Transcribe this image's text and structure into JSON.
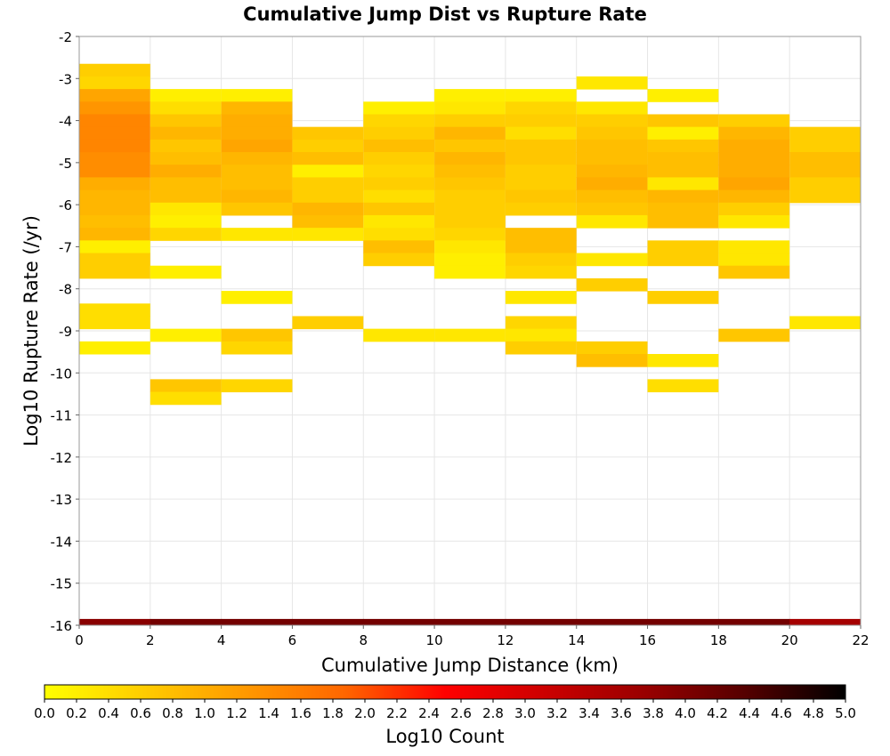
{
  "chart_data": {
    "type": "heatmap",
    "title": "Cumulative Jump Dist vs Rupture Rate",
    "xlabel": "Cumulative Jump Distance (km)",
    "ylabel": "Log10 Rupture Rate (/yr)",
    "xlim": [
      0,
      22
    ],
    "ylim": [
      -16,
      -2
    ],
    "x_ticks": [
      "0",
      "2",
      "4",
      "6",
      "8",
      "10",
      "12",
      "14",
      "16",
      "18",
      "20",
      "22"
    ],
    "y_ticks": [
      "-2",
      "-3",
      "-4",
      "-5",
      "-6",
      "-7",
      "-8",
      "-9",
      "-10",
      "-11",
      "-12",
      "-13",
      "-14",
      "-15",
      "-16"
    ],
    "x_bin_width": 2,
    "y_bin_height": 0.3,
    "grid": true,
    "colorbar": {
      "label": "Log10 Count",
      "min": 0.0,
      "max": 5.0,
      "ticks": [
        "0.0",
        "0.2",
        "0.4",
        "0.6",
        "0.8",
        "1.0",
        "1.2",
        "1.4",
        "1.6",
        "1.8",
        "2.0",
        "2.2",
        "2.4",
        "2.6",
        "2.8",
        "3.0",
        "3.2",
        "3.4",
        "3.6",
        "3.8",
        "4.0",
        "4.2",
        "4.4",
        "4.6",
        "4.8",
        "5.0"
      ],
      "stops": [
        "#ffff00",
        "#ffcc00",
        "#ff9900",
        "#ff6600",
        "#ff0000",
        "#cc0000",
        "#990000",
        "#550000",
        "#000000"
      ]
    },
    "cells": [
      {
        "x": 1,
        "values": [
          [
            -2.8,
            0.6
          ],
          [
            -3.1,
            0.5
          ],
          [
            -3.4,
            1.1
          ],
          [
            -3.7,
            1.3
          ],
          [
            -4.0,
            1.5
          ],
          [
            -4.3,
            1.5
          ],
          [
            -4.6,
            1.5
          ],
          [
            -4.9,
            1.4
          ],
          [
            -5.2,
            1.4
          ],
          [
            -5.5,
            1.0
          ],
          [
            -5.8,
            0.9
          ],
          [
            -6.1,
            0.9
          ],
          [
            -6.4,
            0.8
          ],
          [
            -6.7,
            0.9
          ],
          [
            -7.0,
            0.2
          ],
          [
            -7.3,
            0.6
          ],
          [
            -7.6,
            0.6
          ],
          [
            -8.5,
            0.4
          ],
          [
            -8.8,
            0.4
          ],
          [
            -9.4,
            0.2
          ]
        ]
      },
      {
        "x": 3,
        "values": [
          [
            -3.4,
            0.2
          ],
          [
            -3.7,
            0.4
          ],
          [
            -4.0,
            0.7
          ],
          [
            -4.3,
            0.9
          ],
          [
            -4.6,
            0.7
          ],
          [
            -4.9,
            0.8
          ],
          [
            -5.2,
            1.0
          ],
          [
            -5.5,
            0.8
          ],
          [
            -5.8,
            0.8
          ],
          [
            -6.1,
            0.3
          ],
          [
            -6.4,
            0.2
          ],
          [
            -6.7,
            0.5
          ],
          [
            -7.6,
            0.2
          ],
          [
            -9.1,
            0.2
          ],
          [
            -10.3,
            0.7
          ],
          [
            -10.6,
            0.4
          ]
        ]
      },
      {
        "x": 5,
        "values": [
          [
            -3.4,
            0.2
          ],
          [
            -3.7,
            0.9
          ],
          [
            -4.0,
            1.0
          ],
          [
            -4.3,
            1.0
          ],
          [
            -4.6,
            1.1
          ],
          [
            -4.9,
            0.9
          ],
          [
            -5.2,
            0.8
          ],
          [
            -5.5,
            0.8
          ],
          [
            -5.8,
            0.9
          ],
          [
            -6.1,
            0.7
          ],
          [
            -6.7,
            0.3
          ],
          [
            -8.2,
            0.2
          ],
          [
            -9.1,
            0.7
          ],
          [
            -9.4,
            0.5
          ],
          [
            -10.3,
            0.5
          ]
        ]
      },
      {
        "x": 7,
        "values": [
          [
            -4.3,
            0.7
          ],
          [
            -4.6,
            0.6
          ],
          [
            -4.9,
            0.8
          ],
          [
            -5.2,
            0.2
          ],
          [
            -5.5,
            0.6
          ],
          [
            -5.8,
            0.6
          ],
          [
            -6.1,
            0.9
          ],
          [
            -6.4,
            0.8
          ],
          [
            -6.7,
            0.3
          ],
          [
            -8.8,
            0.6
          ]
        ]
      },
      {
        "x": 9,
        "values": [
          [
            -3.7,
            0.2
          ],
          [
            -4.0,
            0.5
          ],
          [
            -4.3,
            0.6
          ],
          [
            -4.6,
            0.8
          ],
          [
            -4.9,
            0.6
          ],
          [
            -5.2,
            0.5
          ],
          [
            -5.5,
            0.6
          ],
          [
            -5.8,
            0.4
          ],
          [
            -6.1,
            0.7
          ],
          [
            -6.4,
            0.3
          ],
          [
            -6.7,
            0.4
          ],
          [
            -7.0,
            0.8
          ],
          [
            -7.3,
            0.6
          ],
          [
            -9.1,
            0.3
          ]
        ]
      },
      {
        "x": 11,
        "values": [
          [
            -3.4,
            0.2
          ],
          [
            -3.7,
            0.3
          ],
          [
            -4.0,
            0.6
          ],
          [
            -4.3,
            0.9
          ],
          [
            -4.6,
            0.7
          ],
          [
            -4.9,
            0.9
          ],
          [
            -5.2,
            0.8
          ],
          [
            -5.5,
            0.7
          ],
          [
            -5.8,
            0.6
          ],
          [
            -6.1,
            0.6
          ],
          [
            -6.4,
            0.6
          ],
          [
            -6.7,
            0.5
          ],
          [
            -7.0,
            0.3
          ],
          [
            -7.3,
            0.2
          ],
          [
            -7.6,
            0.2
          ],
          [
            -9.1,
            0.3
          ]
        ]
      },
      {
        "x": 13,
        "values": [
          [
            -3.4,
            0.2
          ],
          [
            -3.7,
            0.5
          ],
          [
            -4.0,
            0.6
          ],
          [
            -4.3,
            0.4
          ],
          [
            -4.6,
            0.7
          ],
          [
            -4.9,
            0.7
          ],
          [
            -5.2,
            0.6
          ],
          [
            -5.5,
            0.6
          ],
          [
            -5.8,
            0.7
          ],
          [
            -6.1,
            0.6
          ],
          [
            -6.7,
            0.8
          ],
          [
            -7.0,
            0.8
          ],
          [
            -7.3,
            0.6
          ],
          [
            -7.6,
            0.5
          ],
          [
            -8.2,
            0.3
          ],
          [
            -8.8,
            0.5
          ],
          [
            -9.1,
            0.3
          ],
          [
            -9.4,
            0.6
          ]
        ]
      },
      {
        "x": 15,
        "values": [
          [
            -3.1,
            0.3
          ],
          [
            -3.7,
            0.3
          ],
          [
            -4.0,
            0.6
          ],
          [
            -4.3,
            0.7
          ],
          [
            -4.6,
            0.8
          ],
          [
            -4.9,
            0.8
          ],
          [
            -5.2,
            0.9
          ],
          [
            -5.5,
            1.0
          ],
          [
            -5.8,
            0.8
          ],
          [
            -6.1,
            0.7
          ],
          [
            -6.4,
            0.3
          ],
          [
            -7.3,
            0.3
          ],
          [
            -7.9,
            0.6
          ],
          [
            -9.4,
            0.6
          ],
          [
            -9.7,
            0.8
          ]
        ]
      },
      {
        "x": 17,
        "values": [
          [
            -3.4,
            0.2
          ],
          [
            -4.0,
            0.7
          ],
          [
            -4.3,
            0.2
          ],
          [
            -4.6,
            0.7
          ],
          [
            -4.9,
            0.8
          ],
          [
            -5.2,
            0.8
          ],
          [
            -5.5,
            0.3
          ],
          [
            -5.8,
            0.9
          ],
          [
            -6.1,
            0.8
          ],
          [
            -6.4,
            0.8
          ],
          [
            -7.0,
            0.6
          ],
          [
            -7.3,
            0.6
          ],
          [
            -8.2,
            0.6
          ],
          [
            -9.7,
            0.3
          ],
          [
            -10.3,
            0.4
          ]
        ]
      },
      {
        "x": 19,
        "values": [
          [
            -4.0,
            0.6
          ],
          [
            -4.3,
            0.9
          ],
          [
            -4.6,
            1.0
          ],
          [
            -4.9,
            1.0
          ],
          [
            -5.2,
            1.0
          ],
          [
            -5.5,
            1.1
          ],
          [
            -5.8,
            0.9
          ],
          [
            -6.1,
            0.6
          ],
          [
            -6.4,
            0.3
          ],
          [
            -7.0,
            0.3
          ],
          [
            -7.3,
            0.3
          ],
          [
            -7.6,
            0.7
          ],
          [
            -9.1,
            0.7
          ]
        ]
      },
      {
        "x": 21,
        "values": [
          [
            -4.3,
            0.6
          ],
          [
            -4.6,
            0.6
          ],
          [
            -4.9,
            0.8
          ],
          [
            -5.2,
            0.8
          ],
          [
            -5.5,
            0.6
          ],
          [
            -5.8,
            0.6
          ],
          [
            -8.8,
            0.3
          ]
        ]
      }
    ],
    "bottom_row": {
      "y": -16.0,
      "values": [
        3.9,
        4.1,
        4.1,
        4.1,
        4.1,
        4.1,
        4.1,
        4.1,
        4.1,
        4.1,
        3.6
      ]
    }
  }
}
